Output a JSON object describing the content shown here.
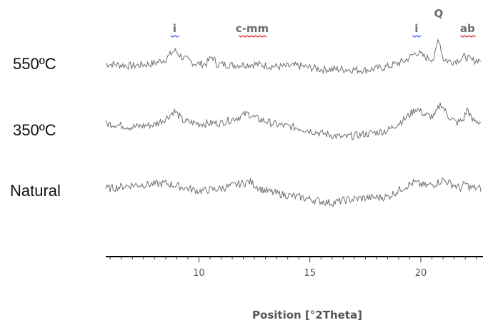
{
  "chart_data": {
    "type": "line",
    "title": "",
    "xlabel": "Position [°2Theta]",
    "ylabel": "",
    "xlim": [
      5.8,
      22.8
    ],
    "x_ticks": [
      10,
      15,
      20
    ],
    "x_tick_labels": [
      "10",
      "15",
      "20"
    ],
    "grid": false,
    "line_color": "#6f6f6f",
    "series": [
      {
        "name": "550ºC",
        "x": [
          6.0,
          7.0,
          8.0,
          8.5,
          8.9,
          9.3,
          9.8,
          10.3,
          10.6,
          10.8,
          11.5,
          12.5,
          13.5,
          14.5,
          15.5,
          16.5,
          17.5,
          18.5,
          19.3,
          19.8,
          20.2,
          20.6,
          20.8,
          21.0,
          21.4,
          21.8,
          22.0,
          22.3,
          22.7
        ],
        "y": [
          0.0,
          -0.2,
          0.1,
          0.6,
          1.6,
          0.7,
          0.1,
          0.0,
          0.9,
          0.0,
          -0.1,
          0.0,
          -0.3,
          -0.2,
          -0.6,
          -0.6,
          -0.7,
          -0.3,
          0.4,
          1.4,
          0.8,
          0.6,
          3.2,
          0.6,
          0.3,
          0.6,
          0.9,
          0.4,
          0.5
        ]
      },
      {
        "name": "350ºC",
        "x": [
          6.0,
          7.0,
          8.0,
          8.5,
          8.9,
          9.3,
          10.0,
          11.0,
          11.8,
          12.2,
          12.6,
          13.5,
          14.5,
          15.5,
          16.5,
          17.5,
          18.5,
          19.3,
          19.8,
          20.2,
          20.6,
          20.9,
          21.2,
          21.6,
          21.9,
          22.1,
          22.3,
          22.7
        ],
        "y": [
          0.2,
          -0.2,
          0.1,
          0.8,
          1.7,
          0.5,
          0.2,
          0.3,
          1.0,
          1.4,
          0.8,
          0.1,
          -0.3,
          -0.9,
          -1.4,
          -1.0,
          -0.6,
          0.8,
          2.0,
          1.2,
          1.0,
          2.6,
          1.2,
          0.3,
          0.6,
          2.0,
          0.6,
          0.4
        ]
      },
      {
        "name": "Natural",
        "x": [
          6.0,
          7.0,
          8.0,
          8.5,
          9.0,
          9.5,
          10.0,
          11.0,
          11.8,
          12.3,
          12.8,
          13.5,
          14.5,
          15.5,
          16.0,
          16.5,
          17.5,
          18.5,
          19.2,
          19.7,
          20.2,
          20.6,
          21.0,
          21.4,
          21.8,
          22.0,
          22.2,
          22.7
        ],
        "y": [
          0.3,
          0.7,
          0.8,
          0.9,
          0.6,
          0.3,
          0.0,
          0.3,
          0.8,
          1.1,
          0.2,
          -0.3,
          -0.7,
          -1.2,
          -1.4,
          -1.1,
          -0.8,
          -0.7,
          0.4,
          1.0,
          0.6,
          0.8,
          1.3,
          0.8,
          0.3,
          0.9,
          0.4,
          0.3
        ]
      }
    ],
    "peak_labels": [
      {
        "text": "i",
        "x": 8.9,
        "series": "550ºC",
        "underline_color": "#3355ff"
      },
      {
        "text": "c-mm",
        "x": 12.4,
        "series": "550ºC",
        "underline_color": "#e02020"
      },
      {
        "text": "i",
        "x": 19.8,
        "series": "550ºC",
        "underline_color": "#3355ff"
      },
      {
        "text": "Q",
        "x": 20.8,
        "series": "550ºC",
        "underline_color": ""
      },
      {
        "text": "ab",
        "x": 22.1,
        "series": "550ºC",
        "underline_color": "#e02020"
      }
    ]
  }
}
